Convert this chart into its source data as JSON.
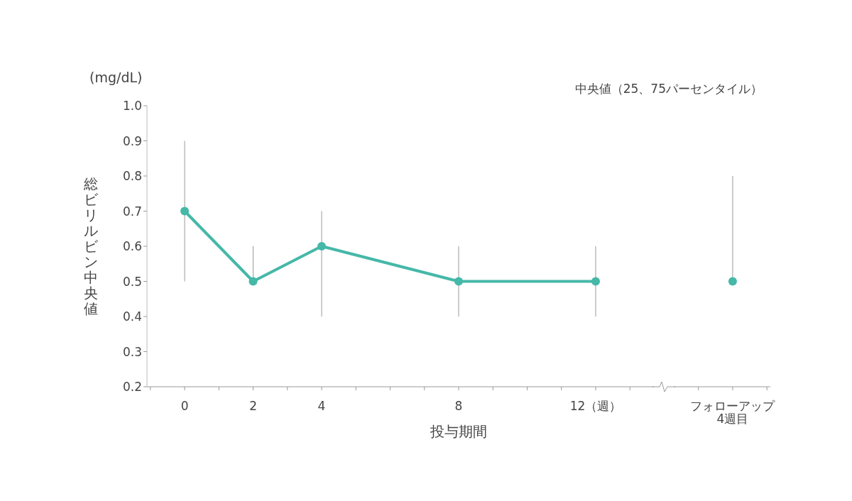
{
  "chart_data": {
    "type": "line",
    "ylabel": "総ビリルビン中央値",
    "xlabel": "投与期間",
    "annotations": [
      "(mg/dL)",
      "中央値（25、75パーセンタイル）"
    ],
    "xlim": [
      -1.1,
      17.1
    ],
    "xticks": [
      {
        "value": -1,
        "label": null
      },
      {
        "value": 0,
        "label": "0"
      },
      {
        "value": 1,
        "label": null
      },
      {
        "value": 2,
        "label": "2"
      },
      {
        "value": 3,
        "label": null
      },
      {
        "value": 4,
        "label": "4"
      },
      {
        "value": 5,
        "label": null
      },
      {
        "value": 6,
        "label": null
      },
      {
        "value": 7,
        "label": null
      },
      {
        "value": 8,
        "label": "8"
      },
      {
        "value": 9,
        "label": null
      },
      {
        "value": 10,
        "label": null
      },
      {
        "value": 11,
        "label": null
      },
      {
        "value": 12,
        "label": "12（週）"
      },
      {
        "value": 13,
        "label": null
      },
      {
        "value": 15,
        "label": null
      },
      {
        "value": 16,
        "label": "フォローアップ\n4週目"
      },
      {
        "value": 17,
        "label": null
      }
    ],
    "ylim": [
      0.2,
      1.0
    ],
    "yticks": [
      0.2,
      0.3,
      0.4,
      0.5,
      0.6,
      0.7,
      0.8,
      0.9,
      {
        "value": 1.0,
        "label": "1.0"
      }
    ],
    "marker": "circle",
    "line_style": "solid",
    "grid": false,
    "legend": false,
    "series": [
      {
        "color": "#45b8a8",
        "x": [
          0,
          2,
          4,
          8,
          12
        ],
        "values": [
          0.7,
          0.5,
          0.6,
          0.5,
          0.5
        ],
        "errors": [
          [
            0.5,
            0.9
          ],
          [
            0.5,
            0.6
          ],
          [
            0.4,
            0.7
          ],
          [
            0.4,
            0.6
          ],
          [
            0.4,
            0.6
          ]
        ]
      },
      {
        "type": "scatter",
        "color": "#45b8a8",
        "x": [
          16
        ],
        "values": [
          0.5
        ],
        "errors": [
          [
            0.5,
            0.8
          ]
        ]
      }
    ]
  }
}
